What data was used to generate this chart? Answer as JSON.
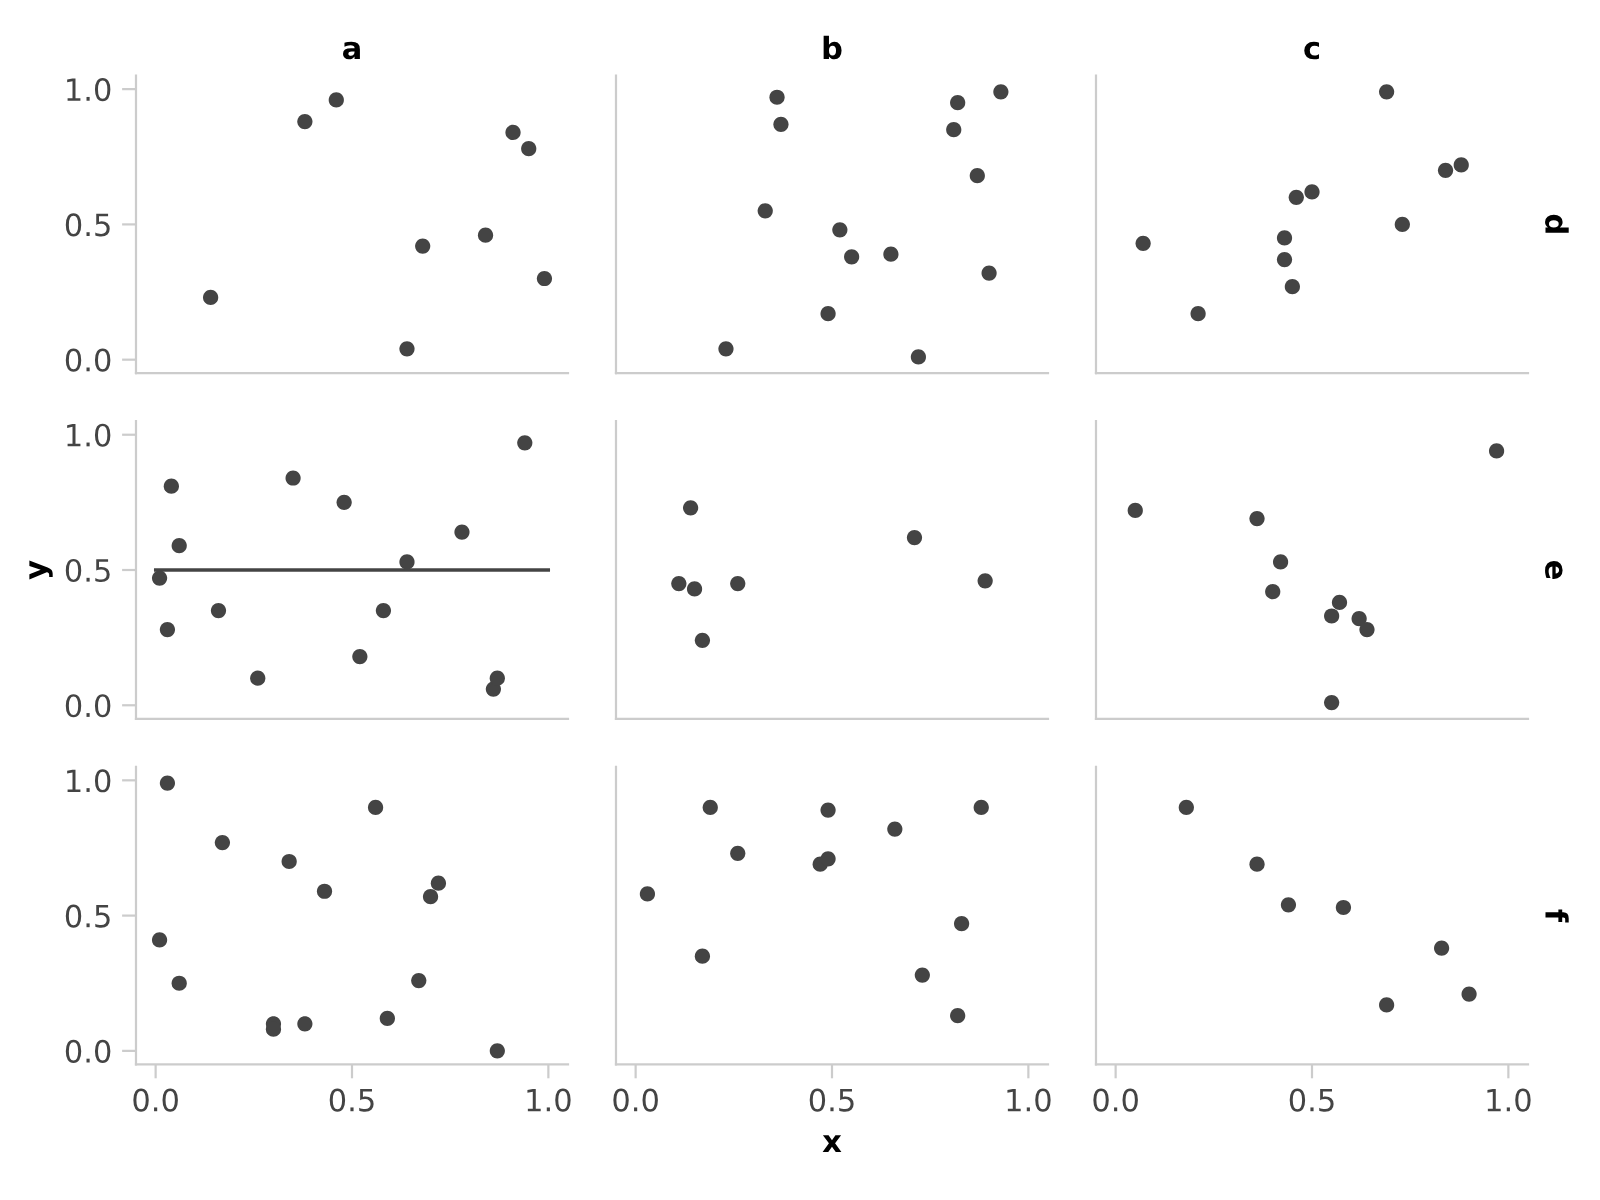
{
  "chart_data": [
    {
      "type": "scatter",
      "title": "a",
      "tick_labels": "y",
      "xlim": [
        -0.05,
        1.05
      ],
      "ylim": [
        -0.05,
        1.05
      ],
      "yticks": [
        {
          "value": 0,
          "label": "0.0"
        },
        {
          "value": 0.5,
          "label": "0.5"
        },
        {
          "value": 1,
          "label": "1.0"
        }
      ],
      "series": [
        {
          "type": "scatter",
          "color": "#444444",
          "x": [
            0.14,
            0.38,
            0.46,
            0.64,
            0.68,
            0.84,
            0.91,
            0.95,
            0.99
          ],
          "values": [
            0.23,
            0.88,
            0.96,
            0.04,
            0.42,
            0.46,
            0.84,
            0.78,
            0.3
          ]
        }
      ]
    },
    {
      "type": "scatter",
      "title": "b",
      "tick_labels": false,
      "xlim": [
        -0.05,
        1.05
      ],
      "ylim": [
        -0.05,
        1.05
      ],
      "series": [
        {
          "type": "scatter",
          "color": "#444444",
          "x": [
            0.23,
            0.33,
            0.36,
            0.37,
            0.49,
            0.52,
            0.55,
            0.65,
            0.72,
            0.81,
            0.82,
            0.87,
            0.9,
            0.93
          ],
          "values": [
            0.04,
            0.55,
            0.97,
            0.87,
            0.17,
            0.48,
            0.38,
            0.39,
            0.01,
            0.85,
            0.95,
            0.68,
            0.32,
            0.99
          ]
        }
      ]
    },
    {
      "type": "scatter",
      "title": "c",
      "annotations": [
        "d"
      ],
      "tick_labels": false,
      "xlim": [
        -0.05,
        1.05
      ],
      "ylim": [
        -0.05,
        1.05
      ],
      "series": [
        {
          "type": "scatter",
          "color": "#444444",
          "x": [
            0.07,
            0.21,
            0.43,
            0.43,
            0.45,
            0.46,
            0.5,
            0.69,
            0.73,
            0.84,
            0.88
          ],
          "values": [
            0.43,
            0.17,
            0.37,
            0.45,
            0.27,
            0.6,
            0.62,
            0.99,
            0.5,
            0.7,
            0.72
          ]
        }
      ]
    },
    {
      "type": "scatter",
      "ylabel": "y",
      "tick_labels": "y",
      "xlim": [
        -0.05,
        1.05
      ],
      "ylim": [
        -0.05,
        1.05
      ],
      "yticks": [
        {
          "value": 0,
          "label": "0.0"
        },
        {
          "value": 0.5,
          "label": "0.5"
        },
        {
          "value": 1,
          "label": "1.0"
        }
      ],
      "series": [
        {
          "type": "scatter",
          "color": "#444444",
          "x": [
            0.01,
            0.03,
            0.04,
            0.06,
            0.16,
            0.26,
            0.35,
            0.48,
            0.52,
            0.58,
            0.64,
            0.78,
            0.86,
            0.87,
            0.94
          ],
          "values": [
            0.47,
            0.28,
            0.81,
            0.59,
            0.35,
            0.1,
            0.84,
            0.75,
            0.18,
            0.35,
            0.53,
            0.64,
            0.06,
            0.1,
            0.97
          ]
        },
        {
          "type": "line",
          "color": "#444444",
          "x": [
            0,
            1
          ],
          "values": [
            0.5,
            0.5
          ]
        }
      ]
    },
    {
      "type": "scatter",
      "tick_labels": false,
      "xlim": [
        -0.05,
        1.05
      ],
      "ylim": [
        -0.05,
        1.05
      ],
      "series": [
        {
          "type": "scatter",
          "color": "#444444",
          "x": [
            0.11,
            0.14,
            0.15,
            0.17,
            0.26,
            0.71,
            0.89
          ],
          "values": [
            0.45,
            0.73,
            0.43,
            0.24,
            0.45,
            0.62,
            0.46
          ]
        }
      ]
    },
    {
      "type": "scatter",
      "annotations": [
        "e"
      ],
      "tick_labels": false,
      "xlim": [
        -0.05,
        1.05
      ],
      "ylim": [
        -0.05,
        1.05
      ],
      "series": [
        {
          "type": "scatter",
          "color": "#444444",
          "x": [
            0.05,
            0.36,
            0.4,
            0.42,
            0.55,
            0.55,
            0.57,
            0.62,
            0.64,
            0.97
          ],
          "values": [
            0.72,
            0.69,
            0.42,
            0.53,
            0.33,
            0.01,
            0.38,
            0.32,
            0.28,
            0.94
          ]
        }
      ]
    },
    {
      "type": "scatter",
      "xlim": [
        -0.05,
        1.05
      ],
      "ylim": [
        -0.05,
        1.05
      ],
      "xticks": [
        {
          "value": 0,
          "label": "0.0"
        },
        {
          "value": 0.5,
          "label": "0.5"
        },
        {
          "value": 1,
          "label": "1.0"
        }
      ],
      "yticks": [
        {
          "value": 0,
          "label": "0.0"
        },
        {
          "value": 0.5,
          "label": "0.5"
        },
        {
          "value": 1,
          "label": "1.0"
        }
      ],
      "series": [
        {
          "type": "scatter",
          "color": "#444444",
          "x": [
            0.01,
            0.03,
            0.06,
            0.17,
            0.3,
            0.3,
            0.34,
            0.38,
            0.43,
            0.56,
            0.59,
            0.67,
            0.7,
            0.72,
            0.87
          ],
          "values": [
            0.41,
            0.99,
            0.25,
            0.77,
            0.1,
            0.08,
            0.7,
            0.1,
            0.59,
            0.9,
            0.12,
            0.26,
            0.57,
            0.62,
            0.0
          ]
        }
      ]
    },
    {
      "type": "scatter",
      "xlabel": "x",
      "tick_labels": "x",
      "xlim": [
        -0.05,
        1.05
      ],
      "ylim": [
        -0.05,
        1.05
      ],
      "xticks": [
        {
          "value": 0,
          "label": "0.0"
        },
        {
          "value": 0.5,
          "label": "0.5"
        },
        {
          "value": 1,
          "label": "1.0"
        }
      ],
      "series": [
        {
          "type": "scatter",
          "color": "#444444",
          "x": [
            0.03,
            0.17,
            0.19,
            0.26,
            0.47,
            0.49,
            0.49,
            0.66,
            0.73,
            0.83,
            0.82,
            0.88
          ],
          "values": [
            0.58,
            0.35,
            0.9,
            0.73,
            0.69,
            0.71,
            0.89,
            0.82,
            0.28,
            0.47,
            0.13,
            0.9
          ]
        }
      ]
    },
    {
      "type": "scatter",
      "annotations": [
        "f"
      ],
      "tick_labels": "x",
      "xlim": [
        -0.05,
        1.05
      ],
      "ylim": [
        -0.05,
        1.05
      ],
      "xticks": [
        {
          "value": 0,
          "label": "0.0"
        },
        {
          "value": 0.5,
          "label": "0.5"
        },
        {
          "value": 1,
          "label": "1.0"
        }
      ],
      "series": [
        {
          "type": "scatter",
          "color": "#444444",
          "x": [
            0.18,
            0.36,
            0.44,
            0.58,
            0.69,
            0.83,
            0.9
          ],
          "values": [
            0.9,
            0.69,
            0.54,
            0.53,
            0.17,
            0.38,
            0.21
          ]
        }
      ]
    }
  ]
}
